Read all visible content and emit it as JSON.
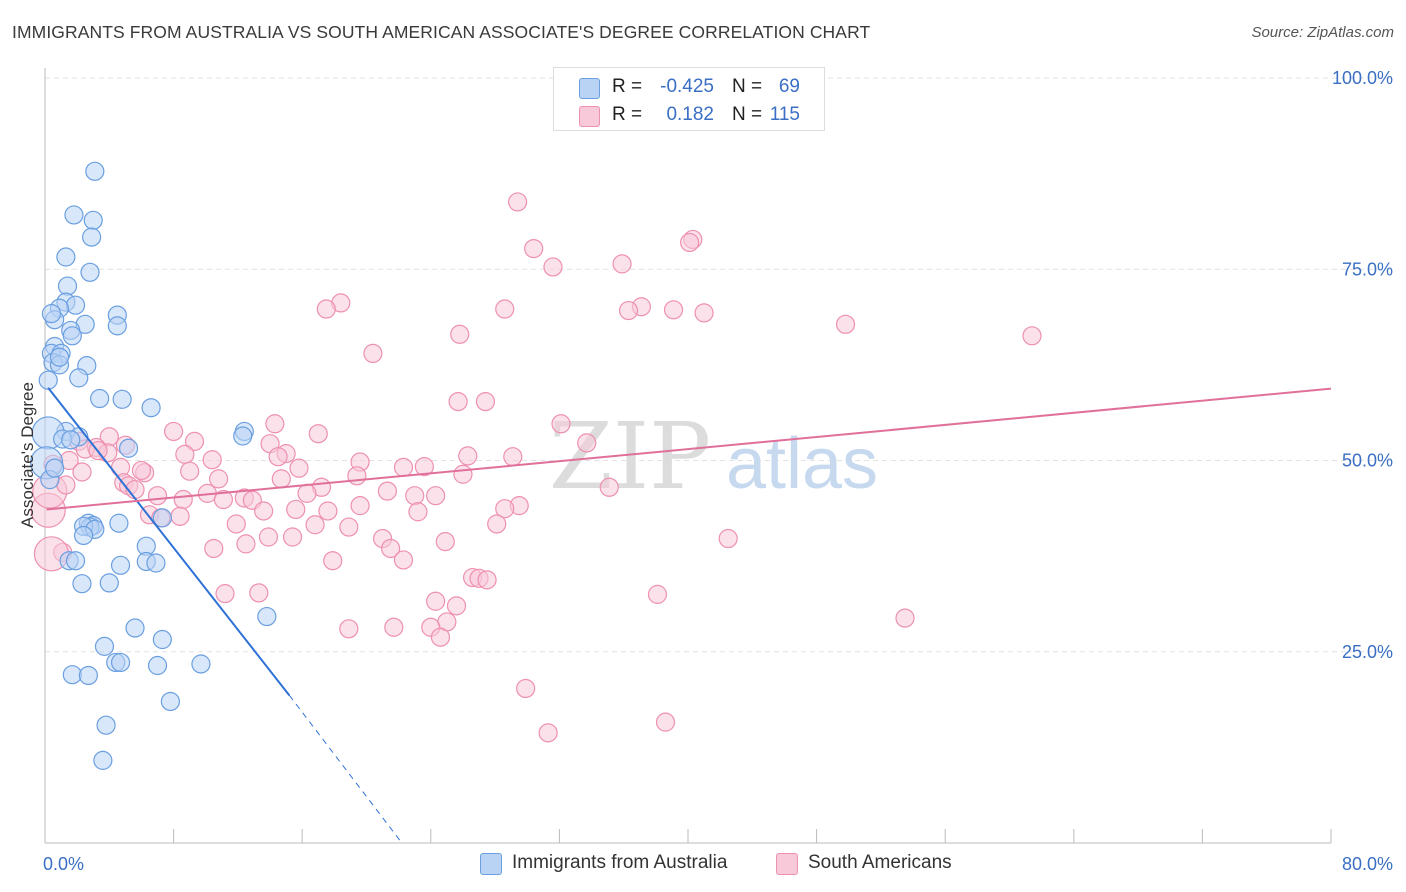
{
  "title": "IMMIGRANTS FROM AUSTRALIA VS SOUTH AMERICAN ASSOCIATE'S DEGREE CORRELATION CHART",
  "source": "Source: ZipAtlas.com",
  "watermark": {
    "zip": "ZIP",
    "atlas": "atlas"
  },
  "legend": {
    "r_label": "R =",
    "n_label": "N =",
    "series1": {
      "r": "-0.425",
      "n": "69"
    },
    "series2": {
      "r": "0.182",
      "n": "115"
    }
  },
  "bottom_legend": {
    "series1": "Immigrants from Australia",
    "series2": "South Americans"
  },
  "colors": {
    "blue_fill": "#b9d3f5",
    "blue_stroke": "#6a9fe0",
    "blue_line": "#2f72d6",
    "pink_fill": "#f8c9d8",
    "pink_stroke": "#ee90b0",
    "pink_line": "#e0709a",
    "axis_text": "#3a6fc4"
  },
  "chart_data": {
    "type": "scatter",
    "title": "IMMIGRANTS FROM AUSTRALIA VS SOUTH AMERICAN ASSOCIATE'S DEGREE CORRELATION CHART",
    "xlabel": "",
    "ylabel": "Associate's Degree",
    "xlim": [
      0,
      80
    ],
    "ylim": [
      0,
      100
    ],
    "x_tick_labels": [
      "0.0%",
      "80.0%"
    ],
    "y_tick_labels": [
      "25.0%",
      "50.0%",
      "75.0%",
      "100.0%"
    ],
    "y_ticks": [
      25,
      50,
      75,
      100
    ],
    "legend_position": "top-center",
    "series": [
      {
        "name": "Immigrants from Australia",
        "r": -0.425,
        "n": 69,
        "trend": {
          "x0": 0.2,
          "y0": 59.5,
          "x1": 15.2,
          "y1": 19.3,
          "dash_x1": 22.2,
          "dash_y1": 0
        },
        "points": [
          [
            3.1,
            87.8
          ],
          [
            1.8,
            82.1
          ],
          [
            3.0,
            81.4
          ],
          [
            2.9,
            79.2
          ],
          [
            1.3,
            76.6
          ],
          [
            2.8,
            74.6
          ],
          [
            1.4,
            72.8
          ],
          [
            1.3,
            70.7
          ],
          [
            1.9,
            70.3
          ],
          [
            0.9,
            69.9
          ],
          [
            4.5,
            69.0
          ],
          [
            0.6,
            68.4
          ],
          [
            2.5,
            67.8
          ],
          [
            4.5,
            67.6
          ],
          [
            1.6,
            67.0
          ],
          [
            1.7,
            66.3
          ],
          [
            0.6,
            64.9
          ],
          [
            0.4,
            64.0
          ],
          [
            1.0,
            64.0
          ],
          [
            0.5,
            62.8
          ],
          [
            0.9,
            62.5
          ],
          [
            2.6,
            62.4
          ],
          [
            2.1,
            60.8
          ],
          [
            0.2,
            60.5
          ],
          [
            3.4,
            58.1
          ],
          [
            4.8,
            58.0
          ],
          [
            6.6,
            56.9
          ],
          [
            1.3,
            53.8
          ],
          [
            12.4,
            53.8
          ],
          [
            0.2,
            53.6
          ],
          [
            12.3,
            53.2
          ],
          [
            2.1,
            53.1
          ],
          [
            1.1,
            52.8
          ],
          [
            1.6,
            52.7
          ],
          [
            5.2,
            51.6
          ],
          [
            0.1,
            49.7
          ],
          [
            0.3,
            47.5
          ],
          [
            7.3,
            42.5
          ],
          [
            4.6,
            41.8
          ],
          [
            2.7,
            41.8
          ],
          [
            3.0,
            41.5
          ],
          [
            2.8,
            41.3
          ],
          [
            2.4,
            41.4
          ],
          [
            3.1,
            41.0
          ],
          [
            2.4,
            40.2
          ],
          [
            6.3,
            38.8
          ],
          [
            1.5,
            36.9
          ],
          [
            1.9,
            36.9
          ],
          [
            6.3,
            36.8
          ],
          [
            6.9,
            36.6
          ],
          [
            4.7,
            36.3
          ],
          [
            2.3,
            33.9
          ],
          [
            4.0,
            34.0
          ],
          [
            13.8,
            29.6
          ],
          [
            5.6,
            28.1
          ],
          [
            7.3,
            26.6
          ],
          [
            3.7,
            25.7
          ],
          [
            4.4,
            23.6
          ],
          [
            4.7,
            23.6
          ],
          [
            9.7,
            23.4
          ],
          [
            7.0,
            23.2
          ],
          [
            1.7,
            22.0
          ],
          [
            2.7,
            21.9
          ],
          [
            7.8,
            18.5
          ],
          [
            3.8,
            15.4
          ],
          [
            3.6,
            10.8
          ],
          [
            0.9,
            63.5
          ],
          [
            0.4,
            69.2
          ],
          [
            0.6,
            49.0
          ]
        ]
      },
      {
        "name": "South Americans",
        "r": 0.182,
        "n": 115,
        "trend": {
          "x0": 0.1,
          "y0": 43.6,
          "x1": 80.0,
          "y1": 59.4
        },
        "points": [
          [
            29.4,
            83.8
          ],
          [
            40.3,
            78.9
          ],
          [
            40.1,
            78.5
          ],
          [
            30.4,
            77.7
          ],
          [
            35.9,
            75.7
          ],
          [
            31.6,
            75.3
          ],
          [
            18.4,
            70.6
          ],
          [
            17.5,
            69.8
          ],
          [
            28.6,
            69.8
          ],
          [
            37.1,
            70.1
          ],
          [
            36.3,
            69.6
          ],
          [
            39.1,
            69.7
          ],
          [
            41.0,
            69.3
          ],
          [
            49.8,
            67.8
          ],
          [
            25.8,
            66.5
          ],
          [
            61.4,
            66.3
          ],
          [
            20.4,
            64.0
          ],
          [
            25.7,
            57.7
          ],
          [
            27.4,
            57.7
          ],
          [
            32.1,
            54.8
          ],
          [
            14.3,
            54.8
          ],
          [
            8.0,
            53.8
          ],
          [
            17.0,
            53.5
          ],
          [
            4.0,
            53.1
          ],
          [
            14.0,
            52.2
          ],
          [
            9.3,
            52.5
          ],
          [
            2.1,
            52.5
          ],
          [
            5.0,
            52.0
          ],
          [
            3.2,
            51.7
          ],
          [
            2.5,
            51.5
          ],
          [
            3.9,
            51.0
          ],
          [
            8.7,
            50.8
          ],
          [
            15.0,
            50.9
          ],
          [
            26.3,
            50.6
          ],
          [
            29.1,
            50.5
          ],
          [
            10.4,
            50.1
          ],
          [
            1.5,
            50.0
          ],
          [
            19.6,
            49.8
          ],
          [
            4.7,
            49.1
          ],
          [
            22.3,
            49.1
          ],
          [
            23.6,
            49.2
          ],
          [
            15.8,
            49.0
          ],
          [
            9.0,
            48.6
          ],
          [
            2.3,
            48.5
          ],
          [
            6.2,
            48.4
          ],
          [
            19.4,
            48.0
          ],
          [
            14.7,
            47.6
          ],
          [
            10.8,
            47.6
          ],
          [
            4.9,
            47.1
          ],
          [
            5.2,
            46.7
          ],
          [
            17.2,
            46.5
          ],
          [
            35.1,
            46.5
          ],
          [
            5.6,
            46.2
          ],
          [
            21.3,
            46.0
          ],
          [
            10.1,
            45.7
          ],
          [
            16.3,
            45.7
          ],
          [
            23.0,
            45.4
          ],
          [
            24.3,
            45.4
          ],
          [
            7.0,
            45.4
          ],
          [
            12.4,
            45.1
          ],
          [
            11.1,
            44.9
          ],
          [
            12.9,
            44.8
          ],
          [
            8.6,
            44.9
          ],
          [
            19.6,
            44.1
          ],
          [
            29.5,
            44.1
          ],
          [
            28.6,
            43.7
          ],
          [
            15.6,
            43.6
          ],
          [
            17.6,
            43.4
          ],
          [
            13.6,
            43.4
          ],
          [
            23.2,
            43.3
          ],
          [
            6.5,
            42.9
          ],
          [
            8.4,
            42.7
          ],
          [
            7.2,
            42.5
          ],
          [
            11.9,
            41.7
          ],
          [
            28.1,
            41.7
          ],
          [
            16.8,
            41.6
          ],
          [
            18.9,
            41.3
          ],
          [
            13.9,
            40.0
          ],
          [
            15.4,
            40.0
          ],
          [
            21.0,
            39.8
          ],
          [
            42.5,
            39.8
          ],
          [
            24.9,
            39.4
          ],
          [
            12.5,
            39.1
          ],
          [
            10.5,
            38.5
          ],
          [
            21.5,
            38.5
          ],
          [
            1.1,
            38.0
          ],
          [
            22.3,
            37.0
          ],
          [
            17.9,
            36.9
          ],
          [
            26.6,
            34.7
          ],
          [
            27.0,
            34.6
          ],
          [
            27.5,
            34.4
          ],
          [
            13.3,
            32.7
          ],
          [
            11.2,
            32.6
          ],
          [
            38.1,
            32.5
          ],
          [
            24.3,
            31.6
          ],
          [
            25.6,
            31.0
          ],
          [
            25.0,
            28.9
          ],
          [
            53.5,
            29.4
          ],
          [
            24.0,
            28.2
          ],
          [
            21.7,
            28.2
          ],
          [
            18.9,
            28.0
          ],
          [
            24.6,
            26.9
          ],
          [
            29.9,
            20.2
          ],
          [
            38.6,
            15.8
          ],
          [
            31.3,
            14.4
          ],
          [
            0.2,
            43.5
          ],
          [
            0.3,
            46.0
          ],
          [
            0.5,
            49.5
          ],
          [
            0.4,
            37.8
          ],
          [
            3.3,
            51.3
          ],
          [
            1.3,
            46.8
          ],
          [
            6.0,
            48.7
          ],
          [
            14.5,
            50.5
          ],
          [
            26.0,
            48.2
          ],
          [
            33.7,
            52.3
          ]
        ]
      }
    ]
  }
}
